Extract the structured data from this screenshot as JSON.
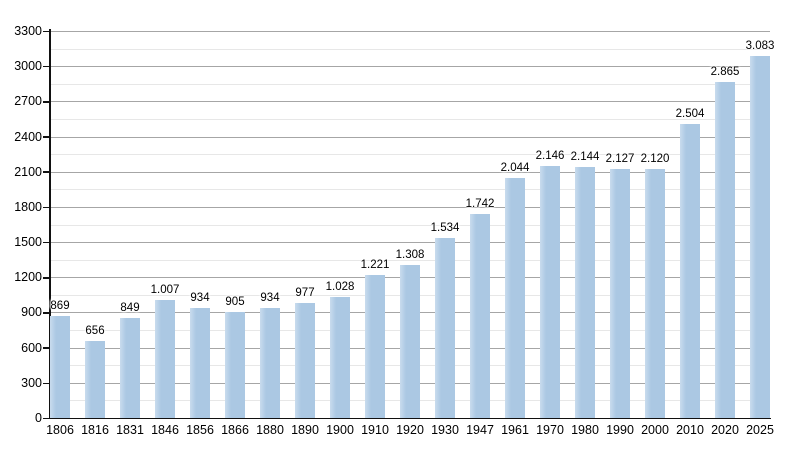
{
  "page": {
    "background_color": "#ffffff"
  },
  "chart_data": {
    "type": "bar",
    "title": "",
    "xlabel": "",
    "ylabel": "",
    "categories": [
      "1806",
      "1816",
      "1831",
      "1846",
      "1856",
      "1866",
      "1880",
      "1890",
      "1900",
      "1910",
      "1920",
      "1930",
      "1947",
      "1961",
      "1970",
      "1980",
      "1990",
      "2000",
      "2010",
      "2020",
      "2025"
    ],
    "values": [
      869,
      656,
      849,
      1007,
      934,
      905,
      934,
      977,
      1028,
      1221,
      1308,
      1534,
      1742,
      2044,
      2146,
      2144,
      2127,
      2120,
      2504,
      2865,
      3083
    ],
    "value_labels": [
      "869",
      "656",
      "849",
      "1.007",
      "934",
      "905",
      "934",
      "977",
      "1.028",
      "1.221",
      "1.308",
      "1.534",
      "1.742",
      "2.044",
      "2.146",
      "2.144",
      "2.127",
      "2.120",
      "2.504",
      "2.865",
      "3.083"
    ],
    "ylim": [
      0,
      3300
    ],
    "y_major_step": 300,
    "y_minor_step": 150,
    "y_tick_labels": [
      "0",
      "300",
      "600",
      "900",
      "1200",
      "1500",
      "1800",
      "2100",
      "2400",
      "2700",
      "3000",
      "3300"
    ],
    "grid": "major and minor horizontal gridlines",
    "legend": "none",
    "colors": {
      "bar_fill": "#abc8e3",
      "bar_highlight": "#c9dcee",
      "major_grid": "#a6a6a6",
      "minor_grid": "#e7e7e7",
      "axis": "#111111",
      "text": "#000000"
    }
  }
}
